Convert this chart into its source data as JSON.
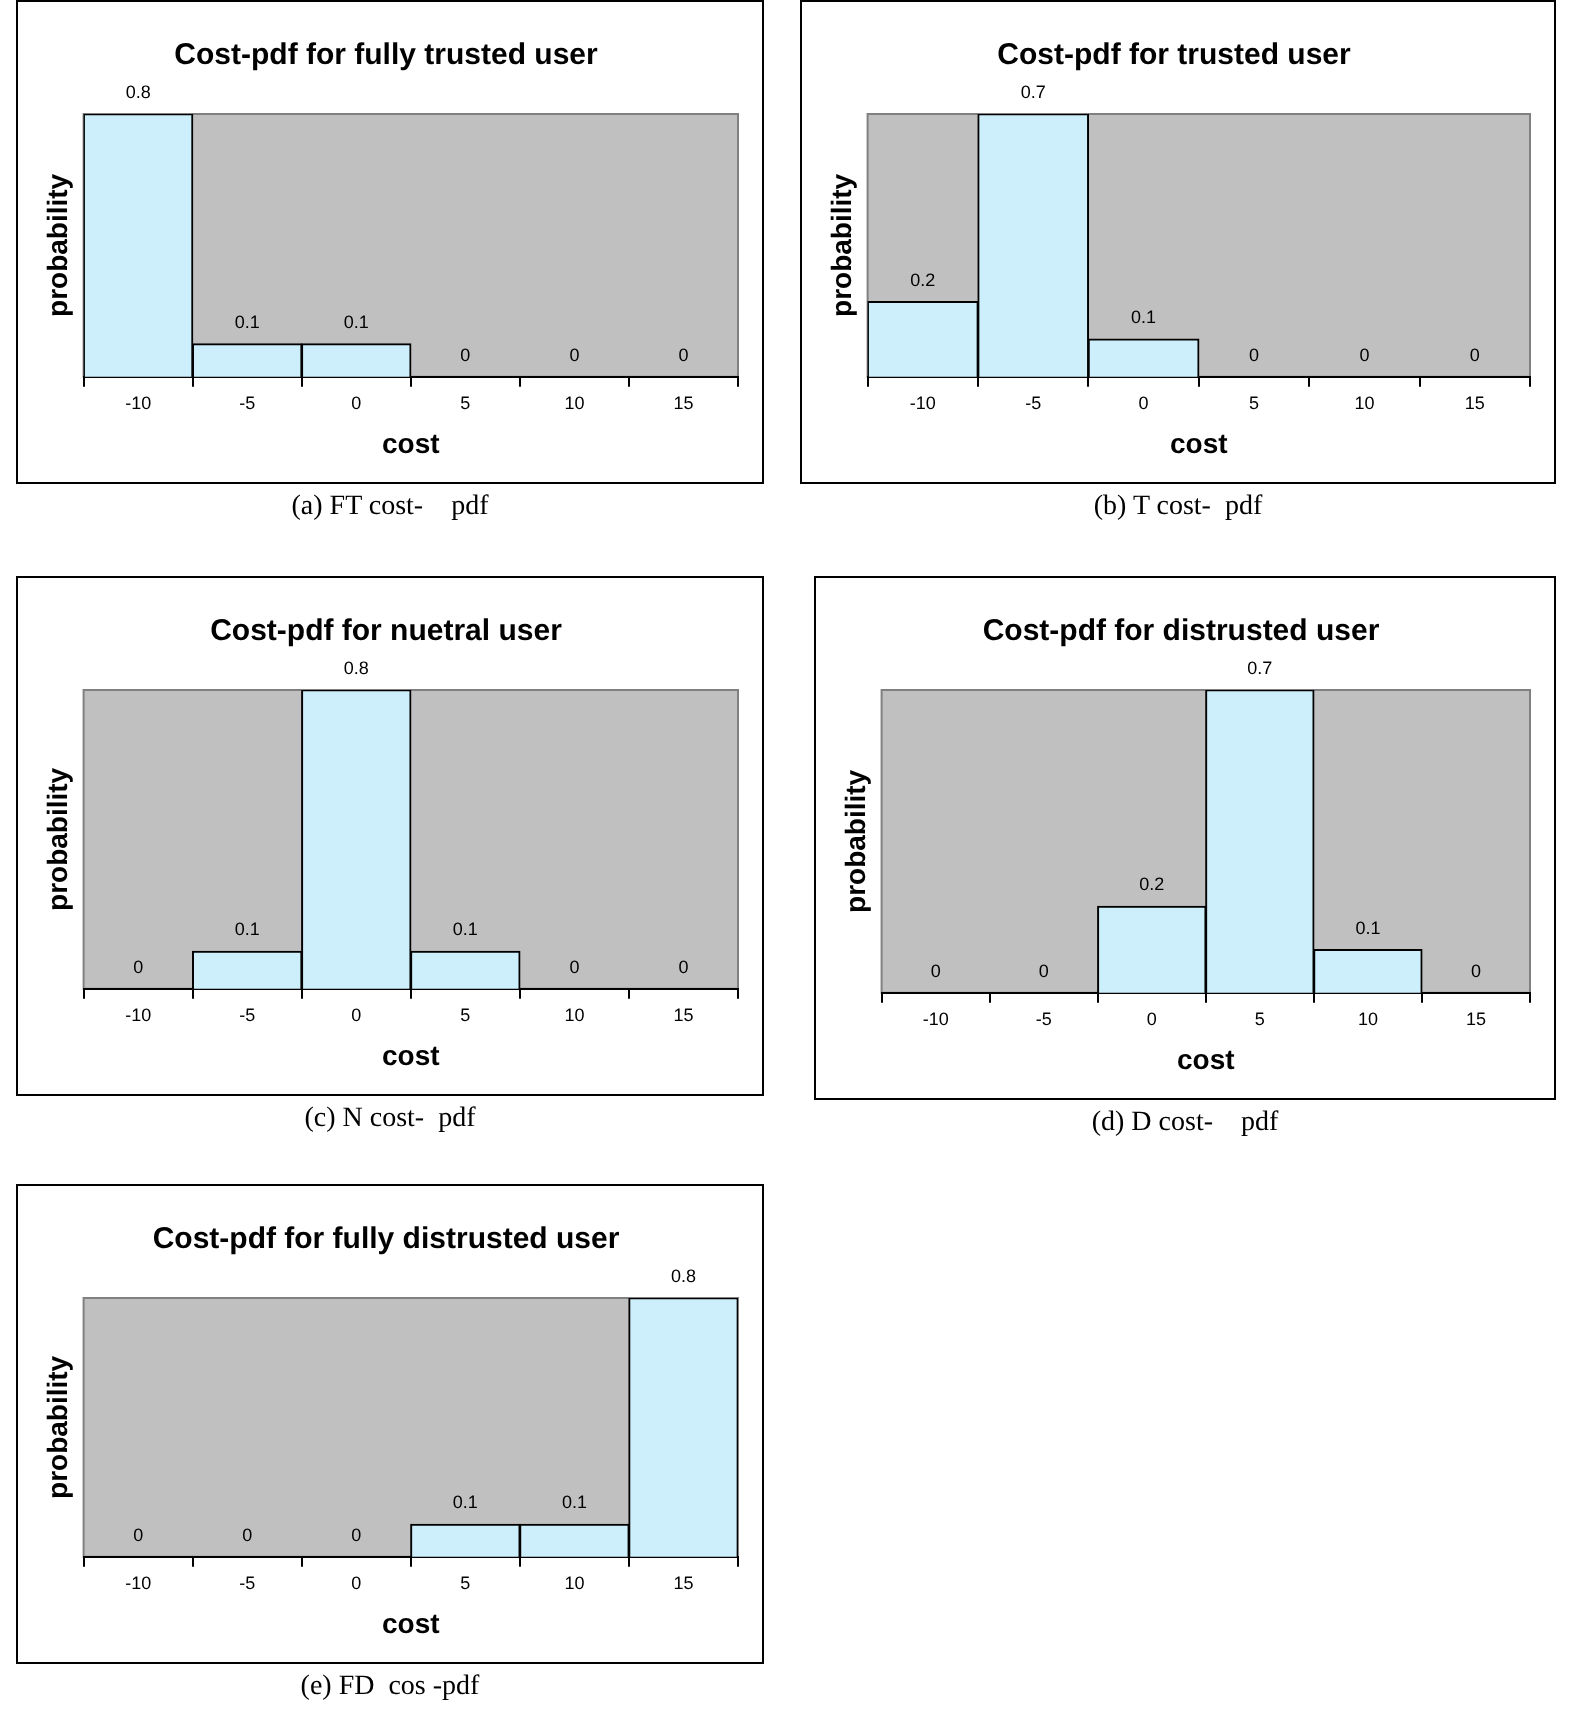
{
  "chart_data": [
    {
      "type": "bar",
      "title": "Cost-pdf for fully trusted user",
      "xlabel": "cost",
      "ylabel": "probability",
      "categories": [
        "-10",
        "-5",
        "0",
        "5",
        "10",
        "15"
      ],
      "values": [
        0.8,
        0.1,
        0.1,
        0,
        0,
        0
      ],
      "color": "#cdeefb",
      "data_labels": true,
      "tick_labels": "x",
      "grid": false,
      "annotations": [
        "(a) FT cost-    pdf"
      ]
    },
    {
      "type": "bar",
      "title": "Cost-pdf for trusted user",
      "xlabel": "cost",
      "ylabel": "probability",
      "categories": [
        "-10",
        "-5",
        "0",
        "5",
        "10",
        "15"
      ],
      "values": [
        0.2,
        0.7,
        0.1,
        0,
        0,
        0
      ],
      "color": "#cdeefb",
      "data_labels": true,
      "tick_labels": "x",
      "grid": false,
      "annotations": [
        "(b) T cost-  pdf"
      ]
    },
    {
      "type": "bar",
      "title": "Cost-pdf for nuetral user",
      "xlabel": "cost",
      "ylabel": "probability",
      "categories": [
        "-10",
        "-5",
        "0",
        "5",
        "10",
        "15"
      ],
      "values": [
        0,
        0.1,
        0.8,
        0.1,
        0,
        0
      ],
      "color": "#cdeefb",
      "data_labels": true,
      "tick_labels": "x",
      "grid": false,
      "annotations": [
        "(c) N cost-  pdf"
      ]
    },
    {
      "type": "bar",
      "title": "Cost-pdf for distrusted user",
      "xlabel": "cost",
      "ylabel": "probability",
      "categories": [
        "-10",
        "-5",
        "0",
        "5",
        "10",
        "15"
      ],
      "values": [
        0,
        0,
        0.2,
        0.7,
        0.1,
        0
      ],
      "color": "#cdeefb",
      "data_labels": true,
      "tick_labels": "x",
      "grid": false,
      "annotations": [
        "(d) D cost-    pdf"
      ]
    },
    {
      "type": "bar",
      "title": "Cost-pdf for fully distrusted user",
      "xlabel": "cost",
      "ylabel": "probability",
      "categories": [
        "-10",
        "-5",
        "0",
        "5",
        "10",
        "15"
      ],
      "values": [
        0,
        0,
        0,
        0.1,
        0.1,
        0.8
      ],
      "color": "#cdeefb",
      "data_labels": true,
      "tick_labels": "x",
      "grid": false,
      "annotations": [
        "(e) FD  cos -pdf"
      ]
    }
  ]
}
